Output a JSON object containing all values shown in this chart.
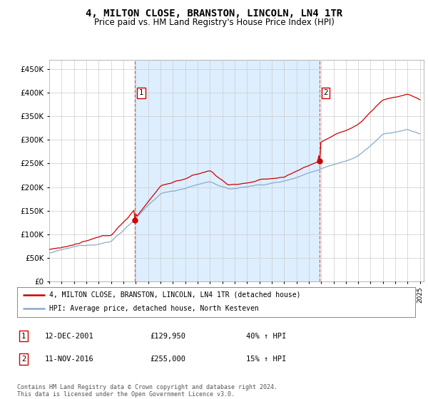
{
  "title": "4, MILTON CLOSE, BRANSTON, LINCOLN, LN4 1TR",
  "subtitle": "Price paid vs. HM Land Registry's House Price Index (HPI)",
  "title_fontsize": 10,
  "subtitle_fontsize": 8.5,
  "ylim": [
    0,
    470000
  ],
  "yticks": [
    0,
    50000,
    100000,
    150000,
    200000,
    250000,
    300000,
    350000,
    400000,
    450000
  ],
  "x_start_year": 1995,
  "x_end_year": 2025,
  "sale1_x": 2001.95,
  "sale1_price": 129950,
  "sale2_x": 2016.87,
  "sale2_price": 255000,
  "red_color": "#cc0000",
  "blue_color": "#88aacc",
  "shade_color": "#ddeeff",
  "dashed_color": "#cc6666",
  "legend_line1": "4, MILTON CLOSE, BRANSTON, LINCOLN, LN4 1TR (detached house)",
  "legend_line2": "HPI: Average price, detached house, North Kesteven",
  "table_rows": [
    {
      "num": "1",
      "date": "12-DEC-2001",
      "price": "£129,950",
      "change": "40% ↑ HPI"
    },
    {
      "num": "2",
      "date": "11-NOV-2016",
      "price": "£255,000",
      "change": "15% ↑ HPI"
    }
  ],
  "footnote": "Contains HM Land Registry data © Crown copyright and database right 2024.\nThis data is licensed under the Open Government Licence v3.0.",
  "bg_color": "#ffffff",
  "grid_color": "#cccccc"
}
